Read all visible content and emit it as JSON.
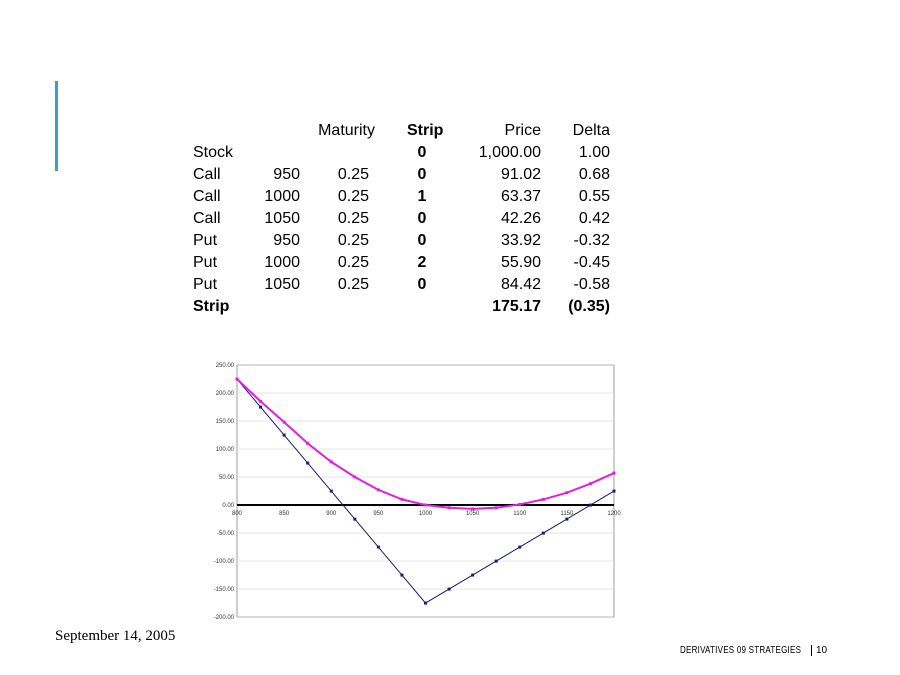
{
  "table": {
    "headers": {
      "k": "",
      "maturity": "Maturity",
      "strip": "Strip",
      "price": "Price",
      "delta": "Delta"
    },
    "rows": [
      {
        "type": "Stock",
        "k": "",
        "maturity": "",
        "strip": "0",
        "price": "1,000.00",
        "delta": "1.00"
      },
      {
        "type": "Call",
        "k": "950",
        "maturity": "0.25",
        "strip": "0",
        "price": "91.02",
        "delta": "0.68"
      },
      {
        "type": "Call",
        "k": "1000",
        "maturity": "0.25",
        "strip": "1",
        "price": "63.37",
        "delta": "0.55"
      },
      {
        "type": "Call",
        "k": "1050",
        "maturity": "0.25",
        "strip": "0",
        "price": "42.26",
        "delta": "0.42"
      },
      {
        "type": "Put",
        "k": "950",
        "maturity": "0.25",
        "strip": "0",
        "price": "33.92",
        "delta": "-0.32"
      },
      {
        "type": "Put",
        "k": "1000",
        "maturity": "0.25",
        "strip": "2",
        "price": "55.90",
        "delta": "-0.45"
      },
      {
        "type": "Put",
        "k": "1050",
        "maturity": "0.25",
        "strip": "0",
        "price": "84.42",
        "delta": "-0.58"
      }
    ],
    "total": {
      "type": "Strip",
      "price": "175.17",
      "delta": "(0.35)"
    }
  },
  "chart_data": {
    "type": "line",
    "xlim": [
      800,
      1200
    ],
    "ylim": [
      -200,
      250
    ],
    "x_ticks": [
      "800",
      "850",
      "900",
      "950",
      "1000",
      "1050",
      "1100",
      "1150",
      "1200"
    ],
    "y_ticks": [
      "250.00",
      "200.00",
      "150.00",
      "100.00",
      "50.00",
      "0.00",
      "-50.00",
      "-100.00",
      "-150.00",
      "-200.00"
    ],
    "grid": true,
    "x": [
      800,
      825,
      850,
      875,
      900,
      925,
      950,
      975,
      1000,
      1025,
      1050,
      1075,
      1100,
      1125,
      1150,
      1175,
      1200
    ],
    "series": [
      {
        "color": "#1a1a6e",
        "values": [
          224.83,
          174.83,
          124.83,
          74.83,
          24.83,
          -25.17,
          -75.17,
          -125.17,
          -175.17,
          -150.17,
          -125.17,
          -100.17,
          -75.17,
          -50.17,
          -25.17,
          -0.17,
          24.83
        ]
      },
      {
        "color": "#e020e0",
        "values": [
          225,
          185,
          148,
          110,
          77,
          50,
          27,
          10,
          0,
          -5,
          -7,
          -5,
          1,
          10,
          22,
          38,
          57
        ]
      }
    ]
  },
  "footer": {
    "date": "September 14, 2005",
    "title": "DERIVATIVES 09 STRATEGIES",
    "page": "10"
  }
}
